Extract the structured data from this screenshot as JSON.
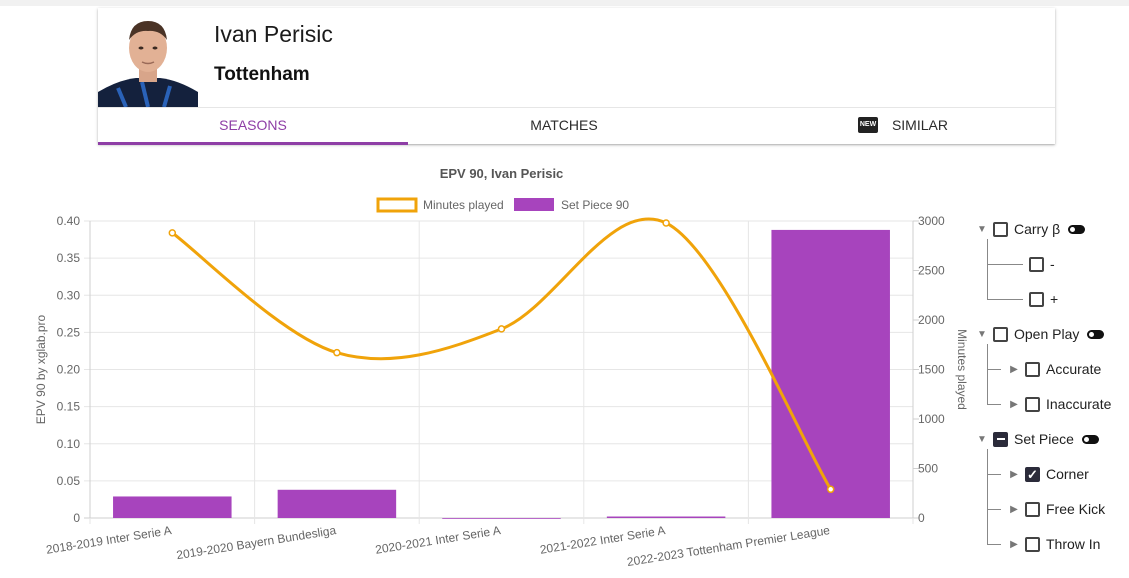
{
  "header": {
    "player_name": "Ivan Perisic",
    "team": "Tottenham",
    "tabs": [
      {
        "label": "SEASONS",
        "active": true
      },
      {
        "label": "MATCHES",
        "active": false
      },
      {
        "label": "SIMILAR",
        "active": false,
        "badge": "NEW"
      }
    ]
  },
  "colors": {
    "accent": "#8e3ea6",
    "bar": "#a744bd",
    "line": "#f0a30a"
  },
  "chart_data": {
    "type": "bar",
    "title": "EPV 90, Ivan Perisic",
    "categories": [
      "2018-2019 Inter Serie A",
      "2019-2020 Bayern Bundesliga",
      "2020-2021 Inter Serie A",
      "2021-2022 Inter Serie A",
      "2022-2023 Tottenham Premier League"
    ],
    "series": [
      {
        "name": "Set Piece 90",
        "type": "bar",
        "axis": "left",
        "values": [
          0.029,
          0.038,
          0.0,
          0.002,
          0.388
        ]
      },
      {
        "name": "Minutes played",
        "type": "line",
        "axis": "right",
        "values": [
          2880,
          1670,
          1910,
          2980,
          290
        ]
      }
    ],
    "ylabel": "EPV 90 by xglab.pro",
    "y2label": "Minutes played",
    "ylim": [
      0,
      0.4
    ],
    "yticks": [
      "0",
      "0.05",
      "0.10",
      "0.15",
      "0.20",
      "0.25",
      "0.30",
      "0.35",
      "0.40"
    ],
    "y2lim": [
      0,
      3000
    ],
    "y2ticks": [
      "0",
      "500",
      "1000",
      "1500",
      "2000",
      "2500",
      "3000"
    ],
    "legend": "top",
    "grid": true
  },
  "filters": {
    "groups": [
      {
        "label": "Carry β",
        "state": "unchecked",
        "expanded": true,
        "children": [
          {
            "label": "-",
            "state": "unchecked"
          },
          {
            "label": "+",
            "state": "unchecked"
          }
        ]
      },
      {
        "label": "Open Play",
        "state": "unchecked",
        "expanded": true,
        "children": [
          {
            "label": "Accurate",
            "state": "unchecked"
          },
          {
            "label": "Inaccurate",
            "state": "unchecked"
          }
        ]
      },
      {
        "label": "Set Piece",
        "state": "mixed",
        "expanded": true,
        "children": [
          {
            "label": "Corner",
            "state": "checked"
          },
          {
            "label": "Free Kick",
            "state": "unchecked"
          },
          {
            "label": "Throw In",
            "state": "unchecked"
          }
        ]
      }
    ]
  }
}
